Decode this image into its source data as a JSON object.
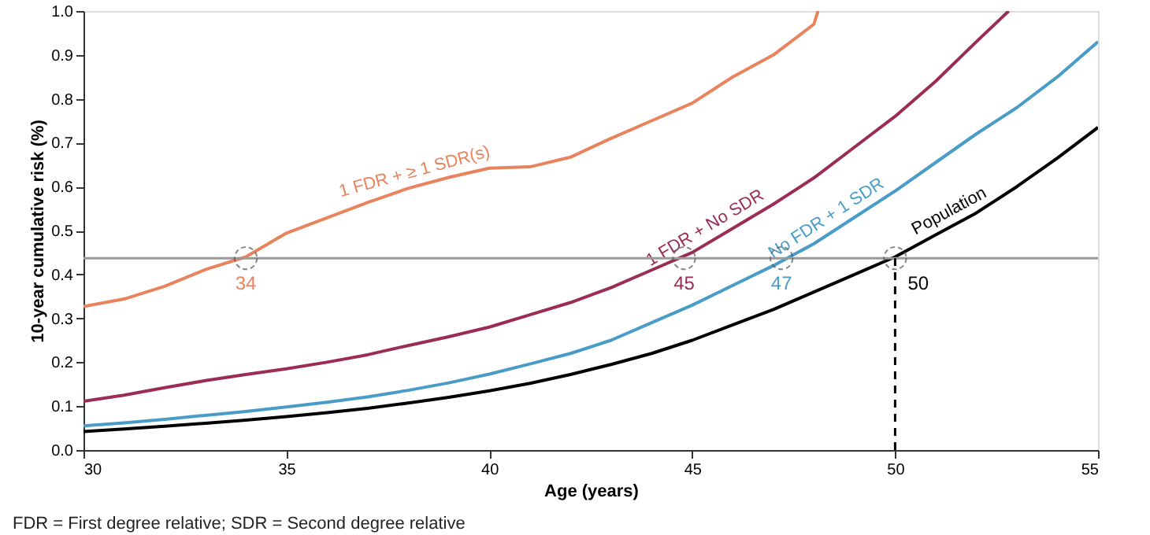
{
  "chart_data": {
    "type": "line",
    "xlabel": "Age (years)",
    "ylabel": "10-year cumulative risk (%)",
    "xlim": [
      30,
      55
    ],
    "xticks": [
      30,
      35,
      40,
      45,
      50,
      55
    ],
    "ylim": [
      0,
      1
    ],
    "yticks": [
      {
        "value": 0,
        "label": "0.0"
      },
      {
        "value": 0.1,
        "label": "0.1"
      },
      {
        "value": 0.2,
        "label": "0.2"
      },
      {
        "value": 0.3,
        "label": "0.3"
      },
      {
        "value": 0.4,
        "label": "0.4"
      },
      {
        "value": 0.5,
        "label": "0.5"
      },
      {
        "value": 0.6,
        "label": "0.6"
      },
      {
        "value": 0.7,
        "label": "0.7"
      },
      {
        "value": 0.8,
        "label": "0.8"
      },
      {
        "value": 0.9,
        "label": "0.9"
      },
      {
        "value": 1,
        "label": "1.0"
      }
    ],
    "grid": false,
    "legend": false,
    "marker": "none",
    "line_style": "solid",
    "series": [
      {
        "name": "1 FDR + ≥ 1 SDR(s)",
        "color": "#e8835e",
        "x": [
          30,
          31,
          32,
          33,
          34,
          35,
          36,
          37,
          38,
          39,
          40,
          41,
          42,
          43,
          44,
          45,
          46,
          47,
          48,
          48.1
        ],
        "values": [
          0.327,
          0.344,
          0.373,
          0.411,
          0.44,
          0.494,
          0.529,
          0.564,
          0.596,
          0.621,
          0.642,
          0.645,
          0.667,
          0.71,
          0.75,
          0.79,
          0.85,
          0.9,
          0.97,
          1.0
        ]
      },
      {
        "name": "1 FDR + No SDR",
        "color": "#9b2c55",
        "x": [
          30,
          31,
          32,
          33,
          34,
          35,
          36,
          37,
          38,
          39,
          40,
          41,
          42,
          43,
          44,
          45,
          46,
          47,
          48,
          49,
          50,
          51,
          52,
          52.8
        ],
        "values": [
          0.111,
          0.125,
          0.142,
          0.158,
          0.172,
          0.185,
          0.2,
          0.217,
          0.238,
          0.258,
          0.28,
          0.308,
          0.336,
          0.37,
          0.41,
          0.45,
          0.505,
          0.56,
          0.62,
          0.69,
          0.76,
          0.84,
          0.93,
          1.0
        ]
      },
      {
        "name": "No FDR + 1 SDR",
        "color": "#4a9cc8",
        "x": [
          30,
          31,
          32,
          33,
          34,
          35,
          36,
          37,
          38,
          39,
          40,
          41,
          42,
          43,
          44,
          45,
          46,
          47,
          48,
          49,
          50,
          51,
          52,
          53,
          54,
          55
        ],
        "values": [
          0.055,
          0.062,
          0.07,
          0.079,
          0.088,
          0.098,
          0.109,
          0.121,
          0.136,
          0.153,
          0.173,
          0.196,
          0.22,
          0.25,
          0.29,
          0.33,
          0.375,
          0.42,
          0.47,
          0.53,
          0.59,
          0.655,
          0.72,
          0.78,
          0.85,
          0.93
        ]
      },
      {
        "name": "Population",
        "color": "#000000",
        "x": [
          30,
          31,
          32,
          33,
          34,
          35,
          36,
          37,
          38,
          39,
          40,
          41,
          42,
          43,
          44,
          45,
          46,
          47,
          48,
          49,
          50,
          51,
          52,
          53,
          54,
          55
        ],
        "values": [
          0.042,
          0.048,
          0.054,
          0.061,
          0.068,
          0.076,
          0.085,
          0.095,
          0.107,
          0.12,
          0.135,
          0.152,
          0.172,
          0.195,
          0.22,
          0.25,
          0.285,
          0.32,
          0.36,
          0.4,
          0.44,
          0.49,
          0.54,
          0.6,
          0.665,
          0.735
        ]
      }
    ],
    "ref_lines": [
      {
        "axis": "y",
        "value": 0.437,
        "color": "#999999",
        "line_style": "solid"
      },
      {
        "axis": "x",
        "value": 50,
        "color": "#000000",
        "line_style": "dashed"
      }
    ],
    "annotations": [
      {
        "text": "34",
        "x": 34,
        "y": 0.437
      },
      {
        "text": "45",
        "x": 44.8,
        "y": 0.437
      },
      {
        "text": "47",
        "x": 47.2,
        "y": 0.437
      },
      {
        "text": "50",
        "x": 50,
        "y": 0.437
      },
      "FDR = First degree relative; SDR = Second degree relative"
    ]
  }
}
